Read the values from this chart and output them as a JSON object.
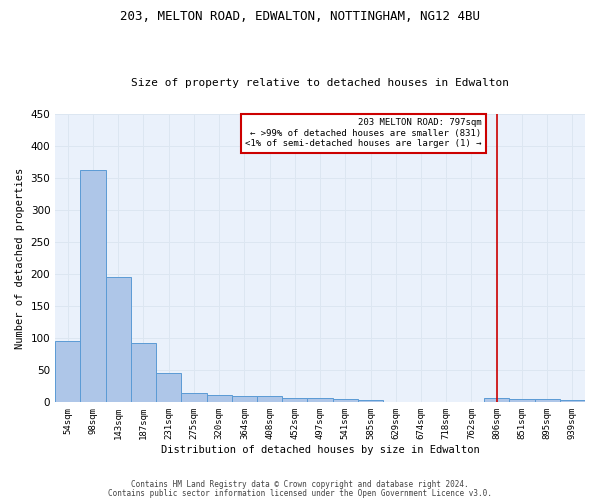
{
  "title1": "203, MELTON ROAD, EDWALTON, NOTTINGHAM, NG12 4BU",
  "title2": "Size of property relative to detached houses in Edwalton",
  "xlabel": "Distribution of detached houses by size in Edwalton",
  "ylabel": "Number of detached properties",
  "footer1": "Contains HM Land Registry data © Crown copyright and database right 2024.",
  "footer2": "Contains public sector information licensed under the Open Government Licence v3.0.",
  "annotation_line1": "203 MELTON ROAD: 797sqm",
  "annotation_line2": "← >99% of detached houses are smaller (831)",
  "annotation_line3": "<1% of semi-detached houses are larger (1) →",
  "categories": [
    "54sqm",
    "98sqm",
    "143sqm",
    "187sqm",
    "231sqm",
    "275sqm",
    "320sqm",
    "364sqm",
    "408sqm",
    "452sqm",
    "497sqm",
    "541sqm",
    "585sqm",
    "629sqm",
    "674sqm",
    "718sqm",
    "762sqm",
    "806sqm",
    "851sqm",
    "895sqm",
    "939sqm"
  ],
  "values": [
    95,
    362,
    195,
    93,
    46,
    15,
    12,
    10,
    10,
    7,
    6,
    5,
    4,
    0,
    0,
    0,
    0,
    6,
    5,
    5,
    4
  ],
  "bar_color": "#aec6e8",
  "bar_edge_color": "#5b9bd5",
  "red_line_x": 17,
  "red_line_color": "#cc0000",
  "annotation_box_color": "#cc0000",
  "grid_color": "#dce6f1",
  "bg_color": "#eaf1fb",
  "ylim": [
    0,
    450
  ],
  "yticks": [
    0,
    50,
    100,
    150,
    200,
    250,
    300,
    350,
    400,
    450
  ]
}
